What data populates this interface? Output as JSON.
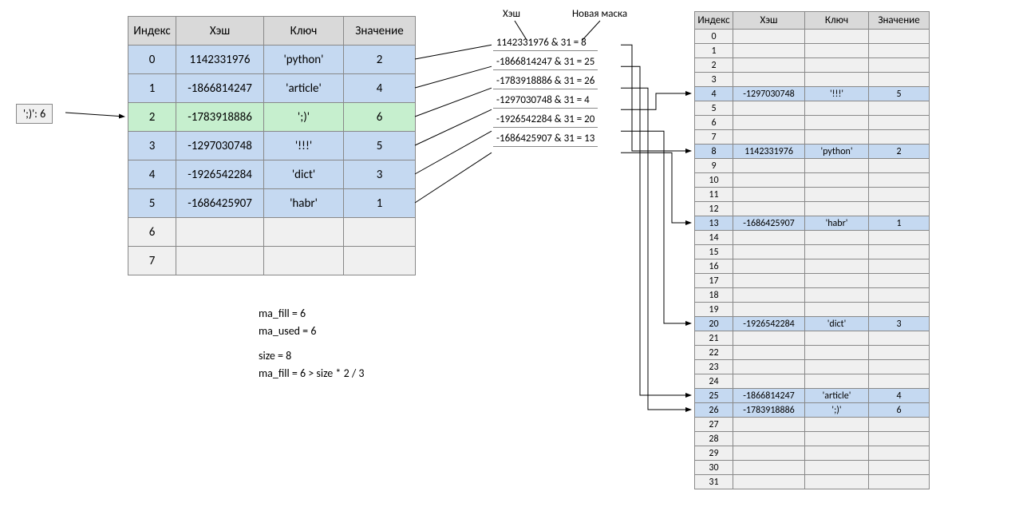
{
  "colors": {
    "header_bg": "#d9d9d9",
    "empty_bg": "#f0f0f0",
    "blue_bg": "#c5d9f1",
    "green_bg": "#c6efce",
    "border": "#888888"
  },
  "input_box": {
    "text": "';)': 6"
  },
  "left_table": {
    "headers": {
      "index": "Индекс",
      "hash": "Хэш",
      "key": "Ключ",
      "value": "Значение"
    },
    "rows": [
      {
        "idx": "0",
        "hash": "1142331976",
        "key": "'python'",
        "val": "2",
        "style": "blue"
      },
      {
        "idx": "1",
        "hash": "-1866814247",
        "key": "'article'",
        "val": "4",
        "style": "blue"
      },
      {
        "idx": "2",
        "hash": "-1783918886",
        "key": "';)'",
        "val": "6",
        "style": "green"
      },
      {
        "idx": "3",
        "hash": "-1297030748",
        "key": "'!!!'",
        "val": "5",
        "style": "blue"
      },
      {
        "idx": "4",
        "hash": "-1926542284",
        "key": "'dict'",
        "val": "3",
        "style": "blue"
      },
      {
        "idx": "5",
        "hash": "-1686425907",
        "key": "'habr'",
        "val": "1",
        "style": "blue"
      },
      {
        "idx": "6",
        "hash": "",
        "key": "",
        "val": "",
        "style": "empty"
      },
      {
        "idx": "7",
        "hash": "",
        "key": "",
        "val": "",
        "style": "empty"
      }
    ]
  },
  "calc_labels": {
    "hash": "Хэш",
    "mask": "Новая маска"
  },
  "calcs": [
    "1142331976 & 31 = 8",
    "-1866814247 & 31 = 25",
    "-1783918886 & 31 = 26",
    "-1297030748 & 31 = 4",
    "-1926542284 & 31 = 20",
    "-1686425907 & 31 = 13"
  ],
  "right_table": {
    "headers": {
      "index": "Индекс",
      "hash": "Хэш",
      "key": "Ключ",
      "value": "Значение"
    },
    "size": 32,
    "filled": {
      "4": {
        "hash": "-1297030748",
        "key": "'!!!'",
        "val": "5"
      },
      "8": {
        "hash": "1142331976",
        "key": "'python'",
        "val": "2"
      },
      "13": {
        "hash": "-1686425907",
        "key": "'habr'",
        "val": "1"
      },
      "20": {
        "hash": "-1926542284",
        "key": "'dict'",
        "val": "3"
      },
      "25": {
        "hash": "-1866814247",
        "key": "'article'",
        "val": "4"
      },
      "26": {
        "hash": "-1783918886",
        "key": "';)'",
        "val": "6"
      }
    }
  },
  "stats": {
    "line1": "ma_fill = 6",
    "line2": "ma_used = 6",
    "line3": "size = 8",
    "line4": "ma_fill = 6 > size * 2 / 3"
  },
  "arrows_calc_to_right": [
    {
      "calc_idx": 0,
      "target": 8
    },
    {
      "calc_idx": 1,
      "target": 25
    },
    {
      "calc_idx": 2,
      "target": 26
    },
    {
      "calc_idx": 3,
      "target": 4
    },
    {
      "calc_idx": 4,
      "target": 20
    },
    {
      "calc_idx": 5,
      "target": 13
    }
  ]
}
